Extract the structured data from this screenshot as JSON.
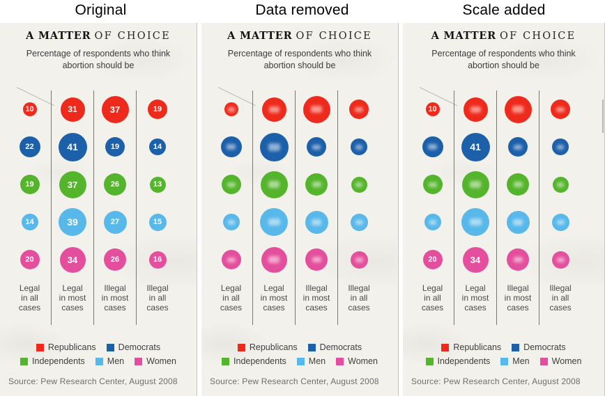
{
  "panels": [
    {
      "title": "Original",
      "mode": "numbers",
      "visible_cells": []
    },
    {
      "title": "Data removed",
      "mode": "blurred",
      "visible_cells": []
    },
    {
      "title": "Scale added",
      "mode": "partial",
      "visible_cells": [
        "0-0",
        "1-1",
        "4-0",
        "4-1"
      ]
    }
  ],
  "chart": {
    "heading_bold": "A MATTER",
    "heading_rest": "OF CHOICE",
    "subtitle": "Percentage of respondents who think abortion should be",
    "category_lines": [
      [
        "Legal",
        "in all",
        "cases"
      ],
      [
        "Legal",
        "in most",
        "cases"
      ],
      [
        "Illegal",
        "in most",
        "cases"
      ],
      [
        "Illegal",
        "in all",
        "cases"
      ]
    ],
    "legend_rows": [
      [
        0,
        1
      ],
      [
        2,
        3,
        4
      ]
    ],
    "source": "Source: Pew Research Center, August 2008"
  },
  "chart_data": {
    "type": "bubble",
    "title": "A MATTER OF CHOICE",
    "subtitle": "Percentage of respondents who think abortion should be",
    "categories": [
      "Legal in all cases",
      "Legal in most cases",
      "Illegal in most cases",
      "Illegal in all cases"
    ],
    "series": [
      {
        "name": "Republicans",
        "color": "#ee2a1c",
        "values": [
          10,
          31,
          37,
          19
        ]
      },
      {
        "name": "Democrats",
        "color": "#1c60aa",
        "values": [
          22,
          41,
          19,
          14
        ]
      },
      {
        "name": "Independents",
        "color": "#54b42c",
        "values": [
          19,
          37,
          26,
          13
        ]
      },
      {
        "name": "Men",
        "color": "#58b8e9",
        "values": [
          14,
          39,
          27,
          15
        ]
      },
      {
        "name": "Women",
        "color": "#e44f9d",
        "values": [
          20,
          34,
          26,
          16
        ]
      }
    ],
    "value_unit": "percent of respondents",
    "size_encoding": "area",
    "legend_position": "bottom",
    "source": "Source: Pew Research Center, August 2008"
  },
  "ui_colors": {
    "paper": "#f3f1ec",
    "panel_divider": "#c6c4be",
    "grid_line": "#787670",
    "label_text": "#4a4a4a",
    "source_text": "#6d6d6d"
  }
}
